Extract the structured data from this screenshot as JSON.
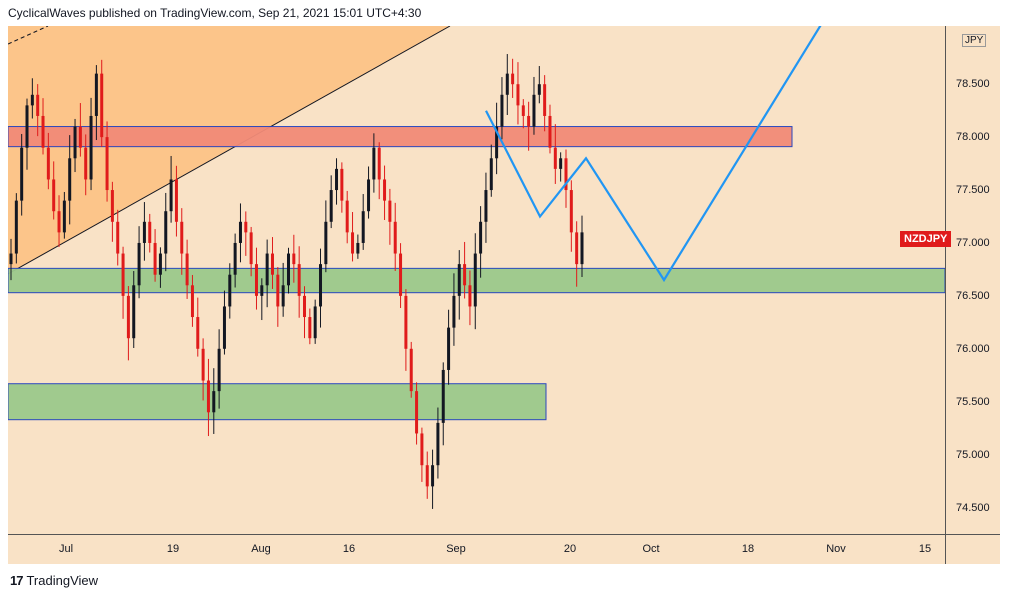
{
  "header": {
    "text": "CyclicalWaves published on TradingView.com, Sep 21, 2021 15:01 UTC+4:30"
  },
  "footer": {
    "logo_glyph": "17",
    "brand": "TradingView"
  },
  "chart_data": {
    "type": "candlestick",
    "symbol": "NZDJPY",
    "currency": "JPY",
    "ylim": [
      74.25,
      79.05
    ],
    "price_ticks": [
      "78.500",
      "78.000",
      "77.500",
      "77.000",
      "76.500",
      "76.000",
      "75.500",
      "75.000",
      "74.500"
    ],
    "time_ticks": [
      "Jul",
      "19",
      "Aug",
      "16",
      "Sep",
      "20",
      "Oct",
      "18",
      "Nov",
      "15"
    ],
    "last_price_label": "NZDJPY",
    "colors": {
      "background": "#f9e2c6",
      "candle_up": "#131722",
      "candle_down": "#e01b1b",
      "projection": "#2196f3",
      "resistance_zone": "#f28b78",
      "support_zone": "#9cc98c",
      "wedge": "#fcc283"
    },
    "zones": [
      {
        "kind": "resistance",
        "low": 77.91,
        "high": 78.1
      },
      {
        "kind": "support",
        "low": 76.53,
        "high": 76.76
      },
      {
        "kind": "support",
        "low": 75.33,
        "high": 75.67
      }
    ],
    "projection_path_prices": [
      78.25,
      77.25,
      77.8,
      76.65,
      79.2
    ],
    "price_path": [
      76.9,
      77.4,
      77.9,
      78.3,
      78.4,
      78.2,
      77.9,
      77.6,
      77.3,
      77.1,
      77.4,
      77.8,
      78.1,
      77.9,
      77.6,
      78.2,
      78.6,
      78.0,
      77.5,
      77.2,
      76.9,
      76.5,
      76.1,
      76.6,
      77.0,
      77.2,
      77.0,
      76.7,
      76.9,
      77.3,
      77.6,
      77.2,
      76.9,
      76.6,
      76.3,
      76.0,
      75.7,
      75.4,
      75.6,
      76.0,
      76.4,
      76.7,
      77.0,
      77.2,
      77.1,
      76.8,
      76.5,
      76.6,
      76.9,
      76.7,
      76.4,
      76.6,
      76.9,
      76.8,
      76.5,
      76.3,
      76.1,
      76.4,
      76.8,
      77.2,
      77.5,
      77.7,
      77.4,
      77.1,
      76.9,
      77.0,
      77.3,
      77.6,
      77.9,
      77.6,
      77.4,
      77.2,
      76.9,
      76.5,
      76.0,
      75.6,
      75.2,
      74.9,
      74.7,
      74.9,
      75.3,
      75.8,
      76.2,
      76.5,
      76.8,
      76.6,
      76.4,
      76.9,
      77.2,
      77.5,
      77.8,
      78.1,
      78.4,
      78.6,
      78.5,
      78.3,
      78.2,
      78.1,
      78.4,
      78.5,
      78.2,
      77.9,
      77.7,
      77.8,
      77.5,
      77.1,
      76.8,
      77.1
    ]
  }
}
